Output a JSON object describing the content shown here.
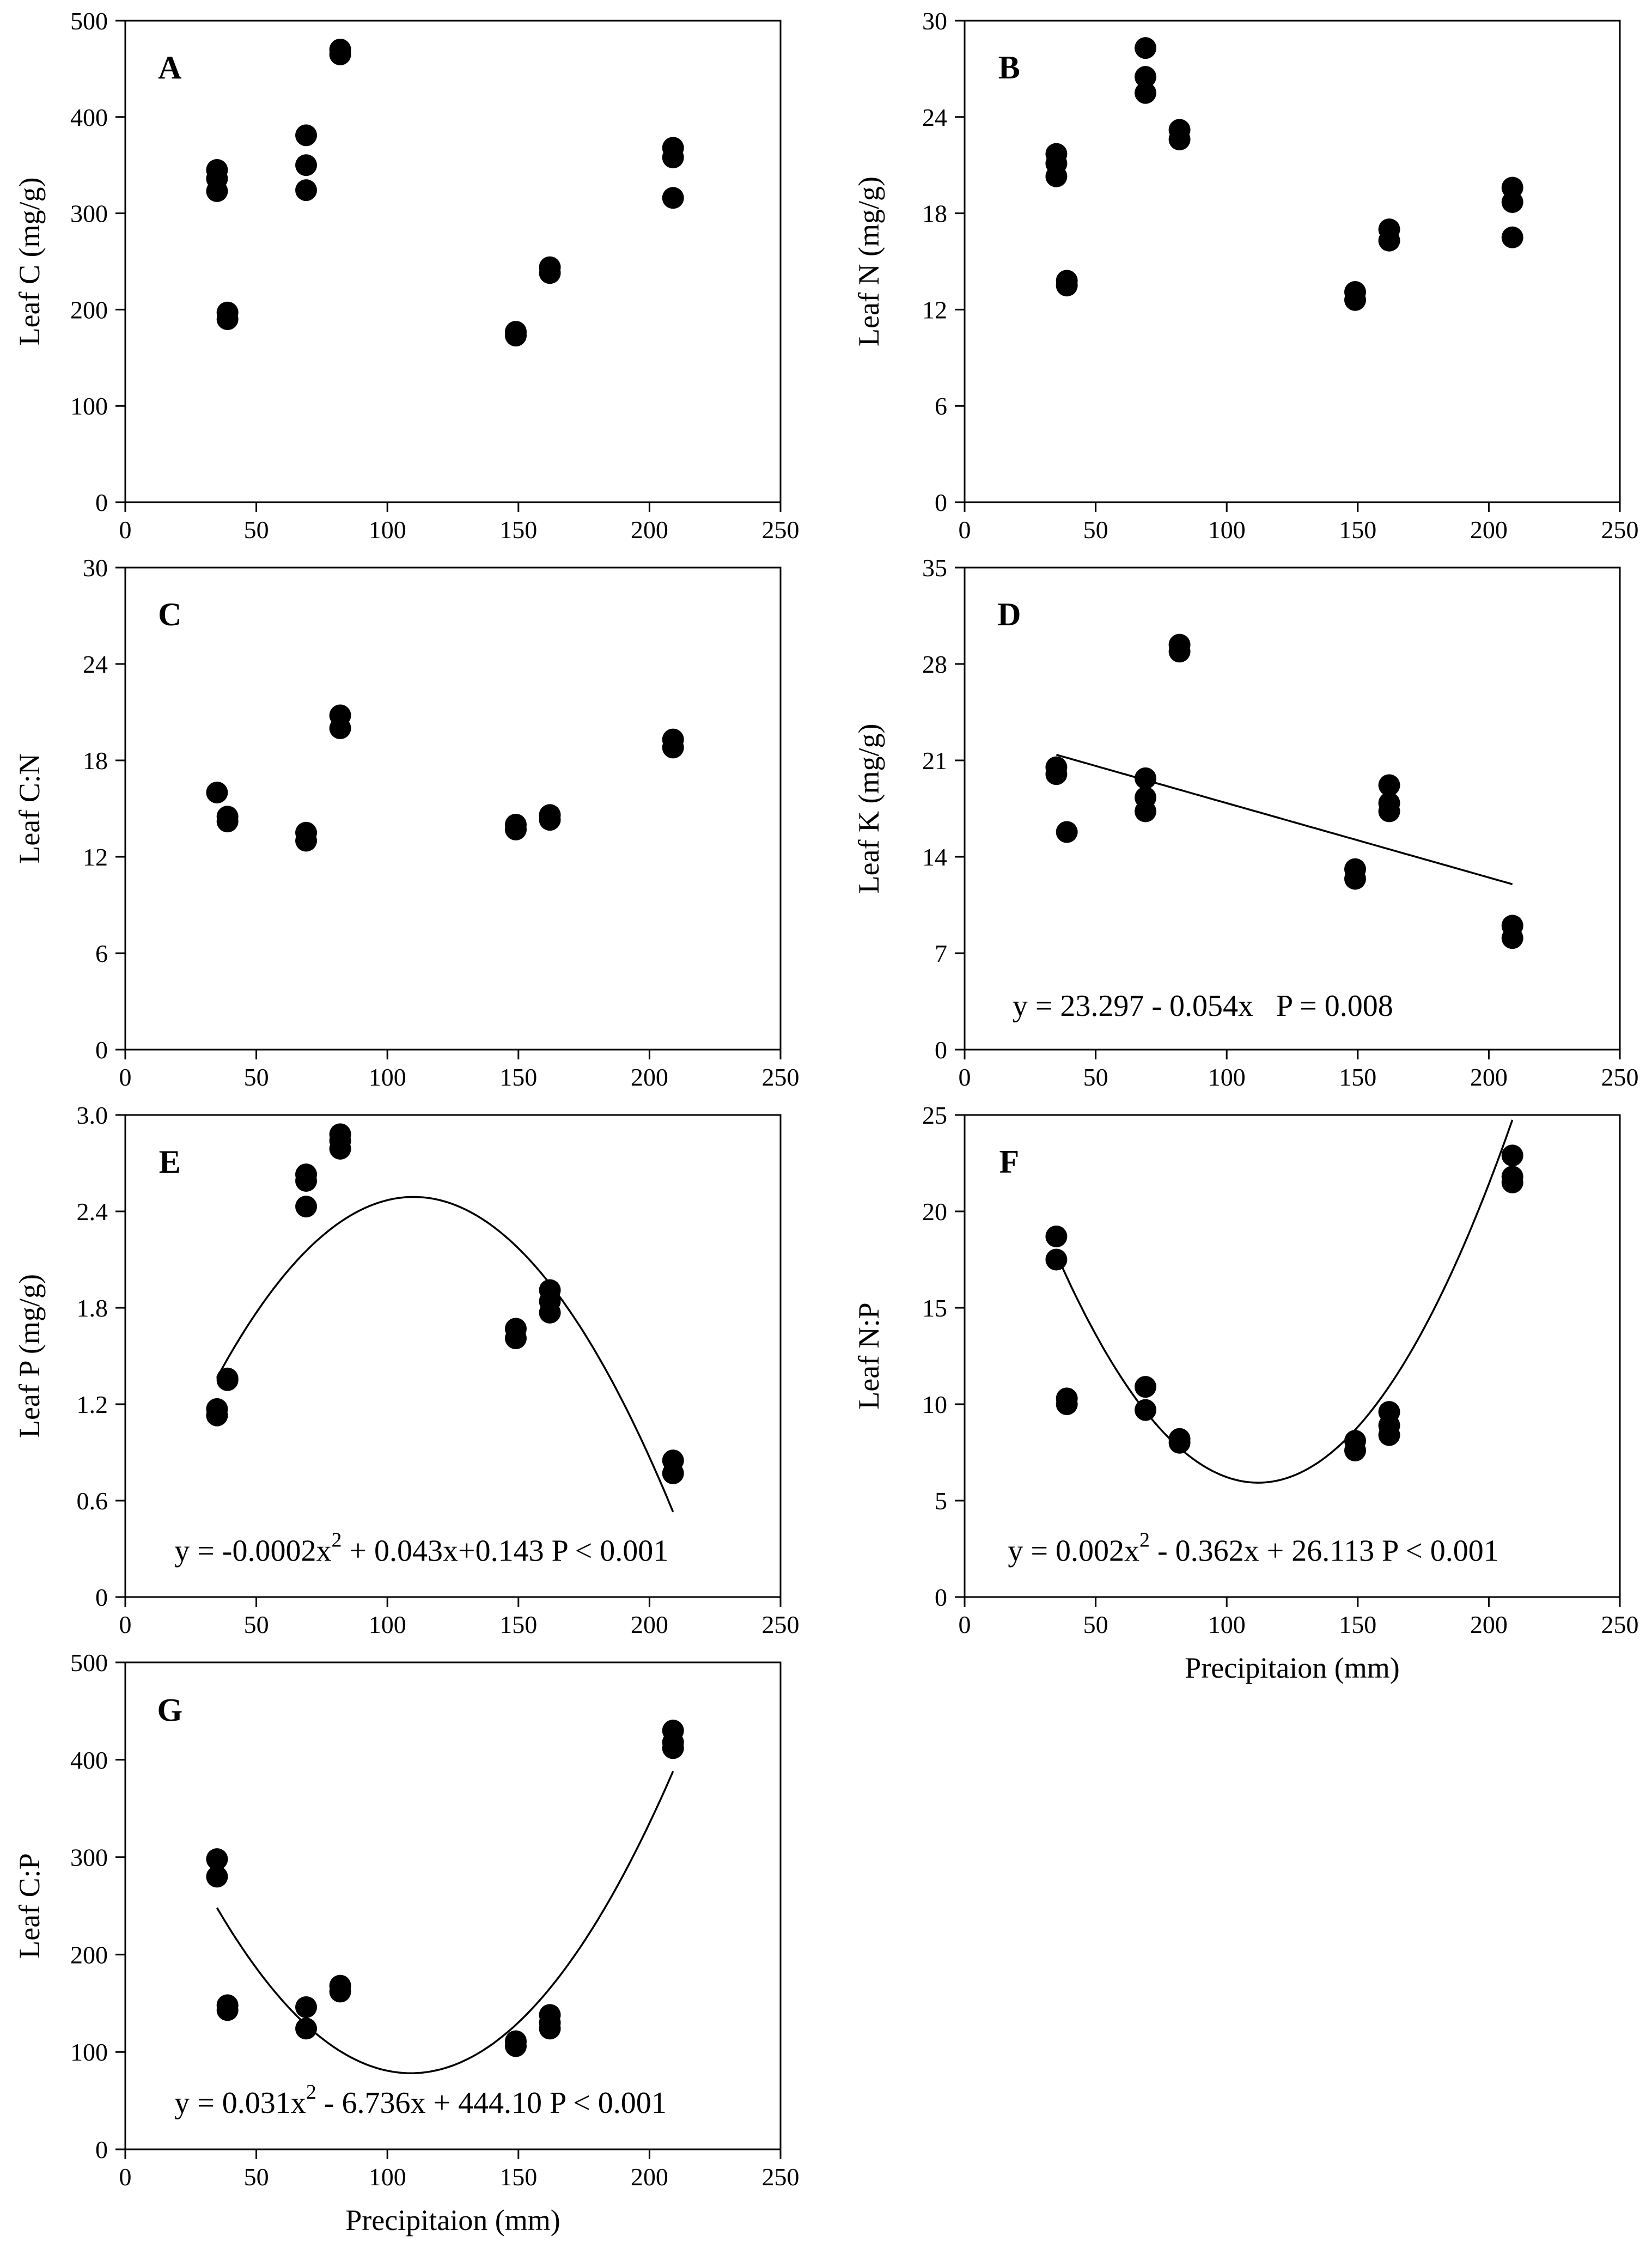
{
  "figure": {
    "colors": {
      "ink": "#000000",
      "background": "#ffffff"
    }
  },
  "chart_data": [
    {
      "id": "A",
      "type": "scatter",
      "panel_label": "A",
      "xlabel": "",
      "ylabel": "Leaf C (mg/g)",
      "xlim": [
        0,
        250
      ],
      "ylim": [
        0,
        500
      ],
      "xticks": [
        "0",
        "50",
        "100",
        "150",
        "200",
        "250"
      ],
      "yticks": [
        "0",
        "100",
        "200",
        "300",
        "400",
        "500"
      ],
      "points": [
        [
          35,
          345
        ],
        [
          35,
          336
        ],
        [
          35,
          323
        ],
        [
          39,
          197
        ],
        [
          39,
          190
        ],
        [
          69,
          381
        ],
        [
          69,
          350
        ],
        [
          69,
          324
        ],
        [
          82,
          470
        ],
        [
          82,
          465
        ],
        [
          149,
          177
        ],
        [
          149,
          173
        ],
        [
          162,
          244
        ],
        [
          162,
          238
        ],
        [
          209,
          368
        ],
        [
          209,
          358
        ],
        [
          209,
          316
        ]
      ],
      "fit": null,
      "equation": ""
    },
    {
      "id": "B",
      "type": "scatter",
      "panel_label": "B",
      "xlabel": "",
      "ylabel": "Leaf N (mg/g)",
      "xlim": [
        0,
        250
      ],
      "ylim": [
        0,
        30
      ],
      "xticks": [
        "0",
        "50",
        "100",
        "150",
        "200",
        "250"
      ],
      "yticks": [
        "0",
        "6",
        "12",
        "18",
        "24",
        "30"
      ],
      "points": [
        [
          35,
          21.7
        ],
        [
          35,
          21.1
        ],
        [
          35,
          20.3
        ],
        [
          39,
          13.8
        ],
        [
          39,
          13.5
        ],
        [
          69,
          28.3
        ],
        [
          69,
          26.5
        ],
        [
          69,
          25.5
        ],
        [
          82,
          23.2
        ],
        [
          82,
          22.6
        ],
        [
          149,
          13.1
        ],
        [
          149,
          12.6
        ],
        [
          162,
          17.0
        ],
        [
          162,
          16.3
        ],
        [
          209,
          19.6
        ],
        [
          209,
          18.7
        ],
        [
          209,
          16.5
        ]
      ],
      "fit": null,
      "equation": ""
    },
    {
      "id": "C",
      "type": "scatter",
      "panel_label": "C",
      "xlabel": "",
      "ylabel": "Leaf C:N",
      "xlim": [
        0,
        250
      ],
      "ylim": [
        0,
        30
      ],
      "xticks": [
        "0",
        "50",
        "100",
        "150",
        "200",
        "250"
      ],
      "yticks": [
        "0",
        "6",
        "12",
        "18",
        "24",
        "30"
      ],
      "points": [
        [
          35,
          16.0
        ],
        [
          39,
          14.5
        ],
        [
          39,
          14.2
        ],
        [
          69,
          13.5
        ],
        [
          69,
          13.0
        ],
        [
          82,
          20.8
        ],
        [
          82,
          20.0
        ],
        [
          149,
          14.0
        ],
        [
          149,
          13.7
        ],
        [
          162,
          14.6
        ],
        [
          162,
          14.3
        ],
        [
          209,
          19.3
        ],
        [
          209,
          18.8
        ]
      ],
      "fit": null,
      "equation": ""
    },
    {
      "id": "D",
      "type": "scatter",
      "panel_label": "D",
      "xlabel": "",
      "ylabel": "Leaf K (mg/g)",
      "xlim": [
        0,
        250
      ],
      "ylim": [
        0,
        35
      ],
      "xticks": [
        "0",
        "50",
        "100",
        "150",
        "200",
        "250"
      ],
      "yticks": [
        "0",
        "7",
        "14",
        "21",
        "28",
        "35"
      ],
      "points": [
        [
          35,
          20.5
        ],
        [
          35,
          20.0
        ],
        [
          39,
          15.8
        ],
        [
          69,
          19.7
        ],
        [
          69,
          18.3
        ],
        [
          69,
          17.3
        ],
        [
          82,
          29.4
        ],
        [
          82,
          28.9
        ],
        [
          149,
          13.1
        ],
        [
          149,
          12.4
        ],
        [
          162,
          19.2
        ],
        [
          162,
          17.9
        ],
        [
          162,
          17.3
        ],
        [
          209,
          9.0
        ],
        [
          209,
          8.1
        ]
      ],
      "fit": {
        "kind": "linear",
        "coef": [
          23.297,
          -0.054
        ],
        "xrange": [
          35,
          209
        ]
      },
      "equation": "y = 23.297 - 0.054x   P = 0.008"
    },
    {
      "id": "E",
      "type": "scatter",
      "panel_label": "E",
      "xlabel": "",
      "ylabel": "Leaf P (mg/g)",
      "xlim": [
        0,
        250
      ],
      "ylim": [
        0,
        3.0
      ],
      "xticks": [
        "0",
        "50",
        "100",
        "150",
        "200",
        "250"
      ],
      "yticks": [
        "0",
        "0.6",
        "1.2",
        "1.8",
        "2.4",
        "3.0"
      ],
      "points": [
        [
          35,
          1.17
        ],
        [
          35,
          1.13
        ],
        [
          39,
          1.36
        ],
        [
          39,
          1.35
        ],
        [
          69,
          2.63
        ],
        [
          69,
          2.59
        ],
        [
          69,
          2.43
        ],
        [
          82,
          2.88
        ],
        [
          82,
          2.84
        ],
        [
          82,
          2.79
        ],
        [
          149,
          1.67
        ],
        [
          149,
          1.61
        ],
        [
          162,
          1.91
        ],
        [
          162,
          1.84
        ],
        [
          162,
          1.77
        ],
        [
          209,
          0.85
        ],
        [
          209,
          0.77
        ]
      ],
      "fit": {
        "kind": "quadratic",
        "vertex": [
          110,
          2.49
        ],
        "a": -0.0002,
        "xrange": [
          35,
          209
        ]
      },
      "equation_parts": [
        "y = -0.0002x",
        "2",
        " + 0.043x+0.143 P < 0.001"
      ]
    },
    {
      "id": "F",
      "type": "scatter",
      "panel_label": "F",
      "xlabel": "Precipitaion (mm)",
      "ylabel": "Leaf N:P",
      "xlim": [
        0,
        250
      ],
      "ylim": [
        0,
        25
      ],
      "xticks": [
        "0",
        "50",
        "100",
        "150",
        "200",
        "250"
      ],
      "yticks": [
        "0",
        "5",
        "10",
        "15",
        "20",
        "25"
      ],
      "points": [
        [
          35,
          18.7
        ],
        [
          35,
          17.5
        ],
        [
          39,
          10.3
        ],
        [
          39,
          10.0
        ],
        [
          69,
          10.9
        ],
        [
          69,
          9.7
        ],
        [
          82,
          8.2
        ],
        [
          82,
          8.0
        ],
        [
          149,
          8.1
        ],
        [
          149,
          7.6
        ],
        [
          162,
          9.6
        ],
        [
          162,
          8.9
        ],
        [
          162,
          8.4
        ],
        [
          209,
          22.9
        ],
        [
          209,
          21.8
        ],
        [
          209,
          21.5
        ]
      ],
      "fit": {
        "kind": "quadratic",
        "vertex": [
          112,
          5.93
        ],
        "a": 0.002,
        "xrange": [
          35,
          209
        ]
      },
      "equation_parts": [
        "y = 0.002x",
        "2",
        " - 0.362x + 26.113 P < 0.001"
      ]
    },
    {
      "id": "G",
      "type": "scatter",
      "panel_label": "G",
      "xlabel": "Precipitaion (mm)",
      "ylabel": "Leaf C:P",
      "xlim": [
        0,
        250
      ],
      "ylim": [
        0,
        500
      ],
      "xticks": [
        "0",
        "50",
        "100",
        "150",
        "200",
        "250"
      ],
      "yticks": [
        "0",
        "100",
        "200",
        "300",
        "400",
        "500"
      ],
      "points": [
        [
          35,
          298
        ],
        [
          35,
          280
        ],
        [
          39,
          148
        ],
        [
          39,
          143
        ],
        [
          69,
          146
        ],
        [
          69,
          124
        ],
        [
          82,
          168
        ],
        [
          82,
          162
        ],
        [
          149,
          111
        ],
        [
          149,
          106
        ],
        [
          162,
          138
        ],
        [
          162,
          130
        ],
        [
          162,
          124
        ],
        [
          209,
          430
        ],
        [
          209,
          418
        ],
        [
          209,
          412
        ]
      ],
      "fit": {
        "kind": "quadratic",
        "vertex": [
          109,
          78.2
        ],
        "a": 0.031,
        "xrange": [
          35,
          209
        ]
      },
      "equation_parts": [
        "y = 0.031x",
        "2",
        " - 6.736x + 444.10 P < 0.001"
      ]
    }
  ]
}
